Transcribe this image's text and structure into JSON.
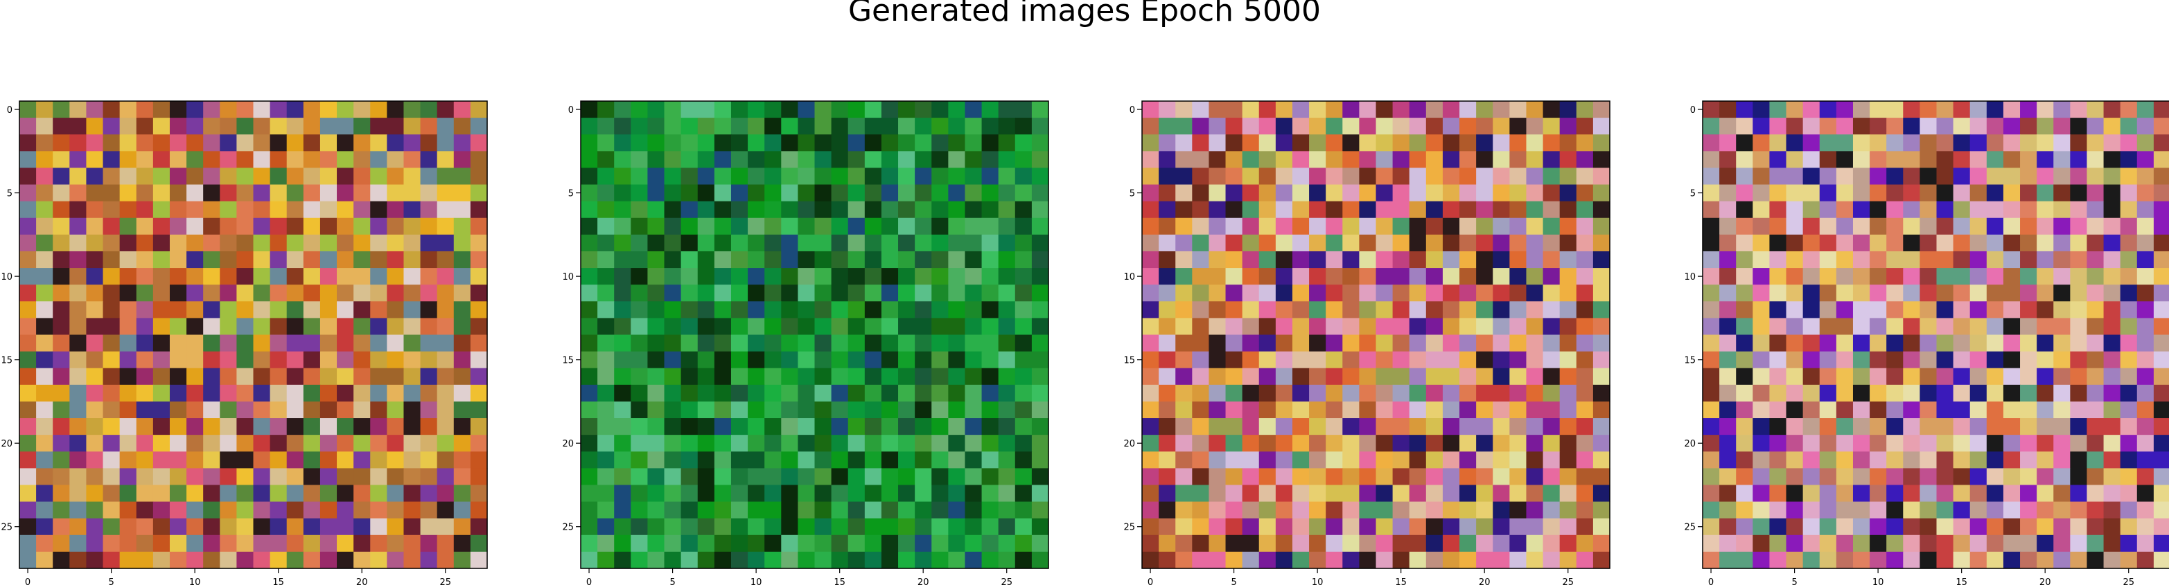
{
  "title": "Generated images Epoch 5000",
  "chart_data": {
    "type": "heatmap",
    "title": "Generated images Epoch 5000",
    "grid": false,
    "image_size": 28,
    "xticks": [
      0,
      5,
      10,
      15,
      20,
      25
    ],
    "yticks": [
      0,
      5,
      10,
      15,
      20,
      25
    ],
    "xlim": [
      -0.5,
      27.5
    ],
    "ylim": [
      27.5,
      -0.5
    ],
    "images": [
      {
        "palette": [
          "#c8551e",
          "#d98a2a",
          "#e3a21a",
          "#b9733a",
          "#d66a3c",
          "#c9a43a",
          "#e6b35a",
          "#a0652a",
          "#8a3a1e",
          "#d4b06a",
          "#c08040",
          "#e07a50",
          "#6a1e2e",
          "#2a1a1a",
          "#9a2a6a",
          "#e05a7a",
          "#c83a3a",
          "#e8c84a",
          "#7a3aa0",
          "#3a2a8a",
          "#5a8a3a",
          "#e0d0d0",
          "#b05a8a",
          "#f0c030",
          "#3a7a3a",
          "#d8c090",
          "#a0c040",
          "#6a8a9a"
        ]
      },
      {
        "palette": [
          "#0a6a1a",
          "#1a8a2a",
          "#0a9a1a",
          "#2aa03a",
          "#0a5a2a",
          "#1a7a3a",
          "#3ab04a",
          "#0a4a1a",
          "#0a3a12",
          "#2a8a4a",
          "#1ab040",
          "#0a7a2a",
          "#4ab060",
          "#0a8a3a",
          "#12a02a",
          "#2a6a2a",
          "#0a2a0a",
          "#1a5a3a",
          "#3ac060",
          "#0a9a3a",
          "#6ab070",
          "#2a9a1a",
          "#1a6a12",
          "#0a7a4a",
          "#4a9a3a",
          "#1a4a7a",
          "#2ab04a",
          "#5ac08a"
        ]
      },
      {
        "palette": [
          "#e07a50",
          "#d99a3a",
          "#e3b04a",
          "#c06a4a",
          "#e8a0a0",
          "#d6c050",
          "#f0b040",
          "#c09080",
          "#9a3a2a",
          "#a080c0",
          "#e0a0c0",
          "#c04080",
          "#e86aa0",
          "#2a1a1a",
          "#7a1a9a",
          "#3a1a8a",
          "#e0e0a0",
          "#b05a2a",
          "#d0c0e0",
          "#e8d070",
          "#9aa050",
          "#c83a3a",
          "#4a9a6a",
          "#1a1a6a",
          "#e06a30",
          "#a0a0c0",
          "#e0c0a0",
          "#6a2a1a"
        ]
      },
      {
        "palette": [
          "#e08060",
          "#d9a060",
          "#e3c06a",
          "#c07060",
          "#e8a0b0",
          "#d8c070",
          "#f0c050",
          "#c0a090",
          "#9a3a3a",
          "#a080c0",
          "#e0a8c8",
          "#c05090",
          "#e870b0",
          "#1a1a1a",
          "#8a1aba",
          "#3a1aba",
          "#e8e0a8",
          "#b06a3a",
          "#d8c8e8",
          "#e8d888",
          "#a0a860",
          "#c84040",
          "#5aa080",
          "#1a1a7a",
          "#e07040",
          "#a8a8c8",
          "#e8c8b0",
          "#7a3020"
        ]
      }
    ]
  }
}
